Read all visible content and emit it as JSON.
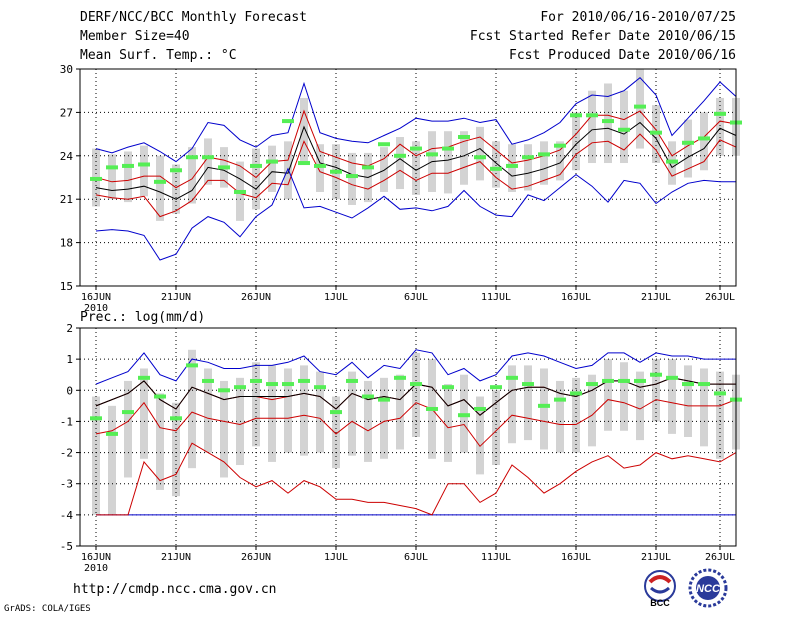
{
  "header": {
    "title": "DERF/NCC/BCC Monthly Forecast",
    "member_size": "Member Size=40",
    "variable_top": "Mean Surf. Temp.: °C",
    "period": "For 2010/06/16-2010/07/25",
    "refer_date": "Fcst Started Refer Date 2010/06/15",
    "produced_date": "Fcst Produced Date 2010/06/16"
  },
  "footer": {
    "url": "http://cmdp.ncc.cma.gov.cn",
    "grads": "GrADS: COLA/IGES"
  },
  "logos": {
    "bcc_text": "BCC",
    "ncc_text": "NCC"
  },
  "colors": {
    "ensemble_range": "#0000cc",
    "spread": "#cc0000",
    "mean": "#000000",
    "box": "#d3d3d3",
    "marker": "#55ee55"
  },
  "chart_data": [
    {
      "type": "box-line",
      "title": "Mean Surf. Temp.: °C",
      "ylim": [
        15,
        30
      ],
      "yticks": [
        15,
        18,
        21,
        24,
        27,
        30
      ],
      "xlabel_ticks": [
        {
          "day": 0,
          "label": "16JUN"
        },
        {
          "day": 5,
          "label": "21JUN"
        },
        {
          "day": 10,
          "label": "26JUN"
        },
        {
          "day": 15,
          "label": "1JUL"
        },
        {
          "day": 20,
          "label": "6JUL"
        },
        {
          "day": 25,
          "label": "11JUL"
        },
        {
          "day": 30,
          "label": "16JUL"
        },
        {
          "day": 35,
          "label": "21JUL"
        },
        {
          "day": 39,
          "label": "26JUL"
        }
      ],
      "year_label": "2010",
      "series": [
        {
          "name": "max",
          "color": "#0000cc",
          "values": [
            24.5,
            24.2,
            24.6,
            24.9,
            24.3,
            23.6,
            24.5,
            26.3,
            26.1,
            25.1,
            24.6,
            25.4,
            25.6,
            29.0,
            25.6,
            25.2,
            25.0,
            24.9,
            25.4,
            25.9,
            26.6,
            26.4,
            26.4,
            26.6,
            26.3,
            26.5,
            24.8,
            25.1,
            25.6,
            26.3,
            27.6,
            28.2,
            28.1,
            28.5,
            29.4,
            28.2,
            25.4,
            26.6,
            27.8,
            29.1,
            28.1
          ]
        },
        {
          "name": "mean_plus",
          "color": "#cc0000",
          "values": [
            22.5,
            22.2,
            22.3,
            22.6,
            22.6,
            21.8,
            22.4,
            23.9,
            23.7,
            23.3,
            22.5,
            23.6,
            23.7,
            27.1,
            24.3,
            23.9,
            23.5,
            23.3,
            23.8,
            24.8,
            24.0,
            24.5,
            24.6,
            25.0,
            25.3,
            24.4,
            23.5,
            23.7,
            24.0,
            24.4,
            25.5,
            26.8,
            26.8,
            26.5,
            27.1,
            25.8,
            24.0,
            24.7,
            25.3,
            26.4,
            26.2
          ]
        },
        {
          "name": "mean",
          "color": "#000000",
          "values": [
            21.8,
            21.6,
            21.7,
            21.9,
            21.5,
            21.0,
            21.6,
            23.2,
            23.0,
            22.4,
            21.7,
            22.9,
            22.8,
            26.0,
            23.5,
            23.2,
            22.7,
            22.5,
            23.0,
            23.8,
            23.0,
            23.6,
            23.7,
            24.0,
            24.5,
            23.5,
            22.6,
            22.8,
            23.1,
            23.5,
            24.8,
            25.8,
            25.9,
            25.5,
            26.3,
            25.2,
            23.2,
            23.9,
            24.5,
            25.9,
            25.4
          ]
        },
        {
          "name": "mean_minus",
          "color": "#cc0000",
          "values": [
            21.3,
            21.1,
            21.0,
            21.2,
            19.8,
            20.2,
            20.9,
            22.3,
            22.3,
            21.4,
            21.1,
            22.1,
            22.0,
            25.0,
            22.9,
            22.5,
            22.0,
            21.7,
            22.3,
            23.0,
            22.3,
            22.8,
            22.8,
            23.2,
            23.6,
            22.5,
            21.7,
            21.9,
            22.3,
            22.7,
            24.1,
            24.9,
            25.0,
            24.4,
            25.5,
            24.4,
            22.6,
            23.1,
            23.6,
            25.1,
            24.6
          ]
        },
        {
          "name": "min",
          "color": "#0000cc",
          "values": [
            18.8,
            18.9,
            18.8,
            18.5,
            16.8,
            17.2,
            19.0,
            19.8,
            19.4,
            18.4,
            19.8,
            20.6,
            23.1,
            20.4,
            20.5,
            20.1,
            19.7,
            20.4,
            21.2,
            20.3,
            20.4,
            20.2,
            20.5,
            21.6,
            20.5,
            19.9,
            19.8,
            21.3,
            20.9,
            21.8,
            22.7,
            21.9,
            20.8,
            22.3,
            22.1,
            20.7,
            21.5,
            22.1,
            22.3,
            22.2,
            22.2
          ]
        }
      ],
      "boxes": [
        {
          "lo": 20.5,
          "hi": 24.5
        },
        {
          "lo": 21.0,
          "hi": 24.1
        },
        {
          "lo": 20.8,
          "hi": 24.3
        },
        {
          "lo": 21.2,
          "hi": 24.7
        },
        {
          "lo": 19.5,
          "hi": 24.0
        },
        {
          "lo": 20.0,
          "hi": 23.4
        },
        {
          "lo": 20.7,
          "hi": 24.6
        },
        {
          "lo": 22.0,
          "hi": 25.2
        },
        {
          "lo": 21.8,
          "hi": 24.6
        },
        {
          "lo": 19.5,
          "hi": 23.6
        },
        {
          "lo": 20.3,
          "hi": 24.5
        },
        {
          "lo": 21.5,
          "hi": 24.7
        },
        {
          "lo": 21.0,
          "hi": 25.0
        },
        {
          "lo": 23.5,
          "hi": 28.0
        },
        {
          "lo": 21.5,
          "hi": 24.8
        },
        {
          "lo": 21.0,
          "hi": 24.8
        },
        {
          "lo": 20.6,
          "hi": 24.2
        },
        {
          "lo": 20.8,
          "hi": 24.2
        },
        {
          "lo": 21.5,
          "hi": 24.6
        },
        {
          "lo": 21.7,
          "hi": 25.3
        },
        {
          "lo": 21.3,
          "hi": 25.0
        },
        {
          "lo": 21.5,
          "hi": 25.7
        },
        {
          "lo": 21.4,
          "hi": 25.7
        },
        {
          "lo": 22.0,
          "hi": 25.7
        },
        {
          "lo": 22.3,
          "hi": 26.0
        },
        {
          "lo": 21.8,
          "hi": 25.0
        },
        {
          "lo": 21.5,
          "hi": 24.8
        },
        {
          "lo": 21.6,
          "hi": 24.8
        },
        {
          "lo": 22.0,
          "hi": 25.0
        },
        {
          "lo": 22.3,
          "hi": 25.0
        },
        {
          "lo": 23.0,
          "hi": 27.0
        },
        {
          "lo": 23.5,
          "hi": 28.5
        },
        {
          "lo": 23.5,
          "hi": 29.0
        },
        {
          "lo": 23.5,
          "hi": 28.5
        },
        {
          "lo": 24.5,
          "hi": 30.0
        },
        {
          "lo": 23.5,
          "hi": 27.5
        },
        {
          "lo": 22.0,
          "hi": 25.0
        },
        {
          "lo": 22.5,
          "hi": 26.5
        },
        {
          "lo": 23.0,
          "hi": 27.0
        },
        {
          "lo": 24.0,
          "hi": 28.0
        },
        {
          "lo": 24.0,
          "hi": 28.0
        }
      ],
      "markers": [
        22.4,
        23.2,
        23.3,
        23.4,
        22.2,
        23.0,
        23.9,
        23.9,
        23.2,
        21.5,
        23.3,
        23.6,
        26.4,
        23.5,
        23.3,
        22.9,
        22.6,
        23.2,
        24.8,
        24.0,
        24.5,
        24.1,
        24.5,
        25.3,
        23.9,
        23.1,
        23.3,
        23.9,
        24.1,
        24.7,
        26.8,
        26.8,
        26.4,
        25.8,
        27.4,
        25.6,
        23.6,
        24.9,
        25.2,
        26.9,
        26.3
      ]
    },
    {
      "type": "box-line",
      "title": "Prec.: log(mm/d)",
      "ylim": [
        -5,
        2
      ],
      "yticks": [
        -5,
        -4,
        -3,
        -2,
        -1,
        0,
        1,
        2
      ],
      "xlabel_ticks": [
        {
          "day": 0,
          "label": "16JUN"
        },
        {
          "day": 5,
          "label": "21JUN"
        },
        {
          "day": 10,
          "label": "26JUN"
        },
        {
          "day": 15,
          "label": "1JUL"
        },
        {
          "day": 20,
          "label": "6JUL"
        },
        {
          "day": 25,
          "label": "11JUL"
        },
        {
          "day": 30,
          "label": "16JUL"
        },
        {
          "day": 35,
          "label": "21JUL"
        },
        {
          "day": 39,
          "label": "26JUL"
        }
      ],
      "year_label": "2010",
      "series": [
        {
          "name": "max",
          "color": "#0000cc",
          "values": [
            0.2,
            0.4,
            0.6,
            1.2,
            0.5,
            0.3,
            1.0,
            0.9,
            0.7,
            0.7,
            0.8,
            0.8,
            0.9,
            1.1,
            0.6,
            0.5,
            0.9,
            0.4,
            0.8,
            0.7,
            1.3,
            1.2,
            0.5,
            0.7,
            0.3,
            0.5,
            1.1,
            1.2,
            1.1,
            0.9,
            0.7,
            0.8,
            1.2,
            1.2,
            0.9,
            1.2,
            1.1,
            1.1,
            1.0,
            1.0,
            1.0
          ]
        },
        {
          "name": "mean_plus",
          "color": "#cc0000",
          "values": [
            -0.5,
            -0.3,
            -0.1,
            0.3,
            -0.3,
            -0.6,
            0.1,
            -0.1,
            -0.3,
            -0.2,
            -0.2,
            -0.3,
            -0.2,
            -0.1,
            -0.2,
            -0.6,
            -0.1,
            -0.3,
            -0.2,
            -0.3,
            0.2,
            0.1,
            -0.5,
            -0.3,
            -0.8,
            -0.4,
            0.0,
            0.1,
            0.1,
            -0.1,
            -0.2,
            0.0,
            0.3,
            0.3,
            0.1,
            0.2,
            0.4,
            0.3,
            0.2,
            0.2,
            0.2
          ]
        },
        {
          "name": "mean",
          "color": "#000000",
          "values": [
            -0.5,
            -0.3,
            -0.1,
            0.3,
            -0.3,
            -0.6,
            0.1,
            -0.1,
            -0.3,
            -0.2,
            -0.2,
            -0.2,
            -0.2,
            -0.1,
            -0.2,
            -0.6,
            -0.1,
            -0.3,
            -0.2,
            -0.3,
            0.2,
            0.1,
            -0.5,
            -0.3,
            -0.8,
            -0.4,
            0.0,
            0.1,
            0.1,
            -0.1,
            -0.2,
            0.0,
            0.3,
            0.3,
            0.1,
            0.2,
            0.4,
            0.3,
            0.2,
            0.2,
            0.2
          ]
        },
        {
          "name": "mean_minus",
          "color": "#cc0000",
          "values": [
            -1.4,
            -1.3,
            -1.0,
            -0.4,
            -1.2,
            -1.3,
            -0.7,
            -0.9,
            -1.0,
            -1.1,
            -0.9,
            -0.9,
            -0.9,
            -0.8,
            -0.9,
            -1.4,
            -1.0,
            -1.3,
            -1.0,
            -0.9,
            -0.4,
            -0.6,
            -1.2,
            -1.1,
            -1.8,
            -1.3,
            -0.8,
            -0.9,
            -1.0,
            -1.1,
            -1.1,
            -0.8,
            -0.3,
            -0.4,
            -0.6,
            -0.3,
            -0.4,
            -0.5,
            -0.5,
            -0.5,
            -0.3
          ]
        },
        {
          "name": "min",
          "color": "#0000cc",
          "values": [
            -4.0,
            -4.0,
            -4.0,
            -4.0,
            -4.0,
            -4.0,
            -4.0,
            -4.0,
            -4.0,
            -4.0,
            -4.0,
            -4.0,
            -4.0,
            -4.0,
            -4.0,
            -4.0,
            -4.0,
            -4.0,
            -4.0,
            -4.0,
            -4.0,
            -4.0,
            -4.0,
            -4.0,
            -4.0,
            -4.0,
            -4.0,
            -4.0,
            -4.0,
            -4.0,
            -4.0,
            -4.0,
            -4.0,
            -4.0,
            -4.0,
            -4.0,
            -4.0,
            -4.0,
            -4.0,
            -4.0,
            -4.0
          ]
        },
        {
          "name": "low_red",
          "color": "#cc0000",
          "values": [
            -4.0,
            -4.0,
            -4.0,
            -2.3,
            -2.9,
            -2.7,
            -1.7,
            -2.0,
            -2.3,
            -2.8,
            -3.1,
            -2.9,
            -3.3,
            -2.9,
            -3.1,
            -3.5,
            -3.5,
            -3.6,
            -3.6,
            -3.7,
            -3.8,
            -4.0,
            -3.0,
            -3.0,
            -3.6,
            -3.3,
            -2.4,
            -2.8,
            -3.3,
            -3.0,
            -2.6,
            -2.3,
            -2.1,
            -2.5,
            -2.4,
            -2.0,
            -2.2,
            -2.1,
            -2.2,
            -2.3,
            -2.0
          ]
        }
      ],
      "boxes": [
        {
          "lo": -4.0,
          "hi": -0.2
        },
        {
          "lo": -4.0,
          "hi": -0.5
        },
        {
          "lo": -2.8,
          "hi": 0.3
        },
        {
          "lo": -2.2,
          "hi": 0.7
        },
        {
          "lo": -3.2,
          "hi": -0.1
        },
        {
          "lo": -3.4,
          "hi": -0.4
        },
        {
          "lo": -2.5,
          "hi": 1.3
        },
        {
          "lo": -2.0,
          "hi": 0.7
        },
        {
          "lo": -2.8,
          "hi": 0.3
        },
        {
          "lo": -2.4,
          "hi": 0.4
        },
        {
          "lo": -1.8,
          "hi": 0.9
        },
        {
          "lo": -2.3,
          "hi": 0.8
        },
        {
          "lo": -2.0,
          "hi": 0.7
        },
        {
          "lo": -2.1,
          "hi": 0.8
        },
        {
          "lo": -2.0,
          "hi": 0.6
        },
        {
          "lo": -2.5,
          "hi": -0.2
        },
        {
          "lo": -2.1,
          "hi": 0.6
        },
        {
          "lo": -2.3,
          "hi": 0.3
        },
        {
          "lo": -2.2,
          "hi": 0.4
        },
        {
          "lo": -1.9,
          "hi": 0.5
        },
        {
          "lo": -1.5,
          "hi": 1.2
        },
        {
          "lo": -2.2,
          "hi": 1.0
        },
        {
          "lo": -2.3,
          "hi": 0.2
        },
        {
          "lo": -2.0,
          "hi": 0.5
        },
        {
          "lo": -2.7,
          "hi": -0.2
        },
        {
          "lo": -2.4,
          "hi": 0.0
        },
        {
          "lo": -1.7,
          "hi": 0.8
        },
        {
          "lo": -1.6,
          "hi": 0.8
        },
        {
          "lo": -1.9,
          "hi": 0.7
        },
        {
          "lo": -2.0,
          "hi": 0.3
        },
        {
          "lo": -2.0,
          "hi": 0.4
        },
        {
          "lo": -1.8,
          "hi": 0.5
        },
        {
          "lo": -1.3,
          "hi": 1.0
        },
        {
          "lo": -1.3,
          "hi": 0.9
        },
        {
          "lo": -1.6,
          "hi": 0.6
        },
        {
          "lo": -1.0,
          "hi": 1.0
        },
        {
          "lo": -1.4,
          "hi": 1.0
        },
        {
          "lo": -1.5,
          "hi": 0.8
        },
        {
          "lo": -1.8,
          "hi": 0.7
        },
        {
          "lo": -2.2,
          "hi": 0.6
        },
        {
          "lo": -1.9,
          "hi": 0.5
        }
      ],
      "markers": [
        -0.9,
        -1.4,
        -0.7,
        0.4,
        -0.2,
        -0.9,
        0.8,
        0.3,
        0.0,
        0.1,
        0.3,
        0.2,
        0.2,
        0.3,
        0.1,
        -0.7,
        0.3,
        -0.2,
        -0.3,
        0.4,
        0.2,
        -0.6,
        0.1,
        -0.8,
        -0.6,
        0.1,
        0.4,
        0.2,
        -0.5,
        -0.3,
        -0.1,
        0.2,
        0.3,
        0.3,
        0.3,
        0.5,
        0.4,
        0.2,
        0.2,
        -0.1,
        -0.3
      ]
    }
  ]
}
